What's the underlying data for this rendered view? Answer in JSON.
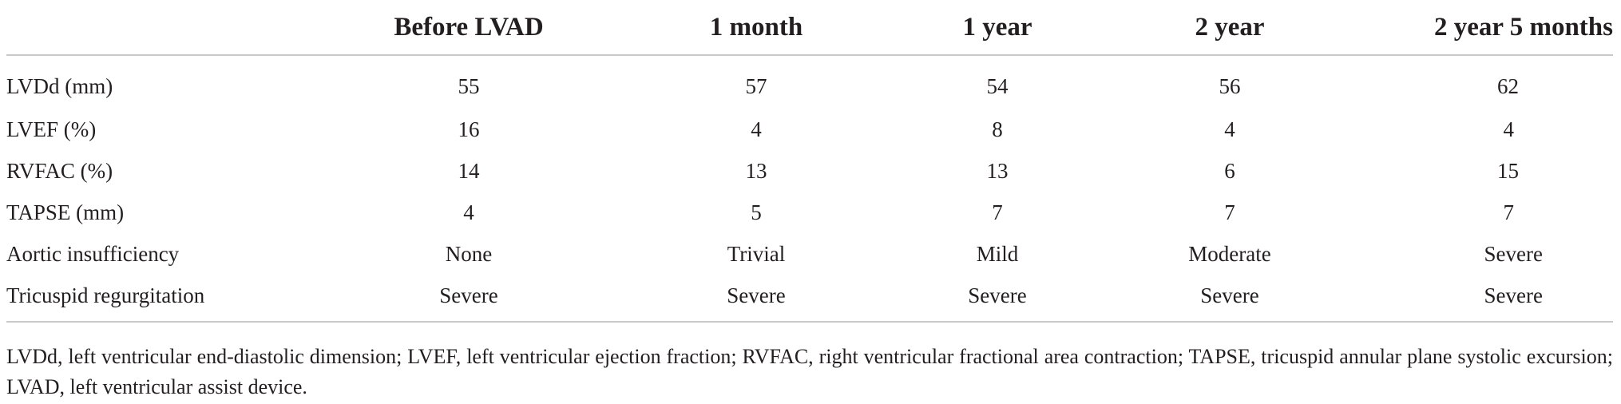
{
  "table": {
    "headers": [
      "",
      "Before LVAD",
      "1 month",
      "1 year",
      "2 year",
      "2 year 5 months"
    ],
    "rows": [
      [
        "LVDd (mm)",
        "55",
        "57",
        "54",
        "56",
        "62"
      ],
      [
        "LVEF (%)",
        "16",
        "4",
        "8",
        "4",
        "4"
      ],
      [
        "RVFAC (%)",
        "14",
        "13",
        "13",
        "6",
        "15"
      ],
      [
        "TAPSE (mm)",
        "4",
        "5",
        "7",
        "7",
        "7"
      ],
      [
        "Aortic insufficiency",
        "None",
        "Trivial",
        "Mild",
        "Moderate",
        "Severe"
      ],
      [
        "Tricuspid regurgitation",
        "Severe",
        "Severe",
        "Severe",
        "Severe",
        "Severe"
      ]
    ]
  },
  "footnote": "LVDd, left ventricular end-diastolic dimension; LVEF, left ventricular ejection fraction; RVFAC, right ventricular fractional area contraction; TAPSE, tricuspid annular plane systolic excursion; LVAD, left ventricular assist device."
}
